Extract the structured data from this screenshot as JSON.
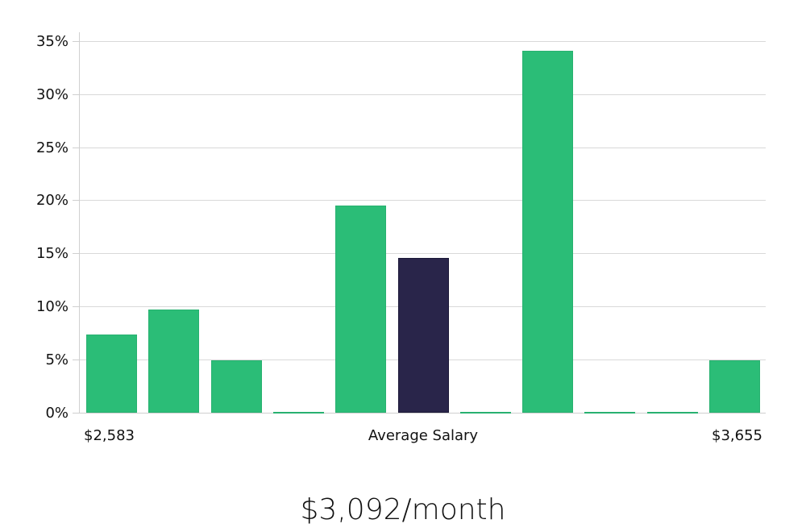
{
  "chart_data": {
    "type": "bar",
    "title": "",
    "xlabel": "Average Salary",
    "ylabel": "",
    "ylim": [
      0,
      35
    ],
    "y_ticks": [
      "0%",
      "5%",
      "10%",
      "15%",
      "20%",
      "25%",
      "30%",
      "35%"
    ],
    "x_range_labels": {
      "min": "$2,583",
      "max": "$3,655"
    },
    "grid": true,
    "legend": null,
    "categories": [
      "bin1",
      "bin2",
      "bin3",
      "bin4",
      "bin5",
      "bin6",
      "bin7",
      "bin8",
      "bin9",
      "bin10",
      "bin11"
    ],
    "values": [
      7.4,
      9.7,
      4.9,
      0.1,
      19.5,
      14.6,
      0.1,
      34.1,
      0.1,
      0.1,
      4.9
    ],
    "highlight_index": 5,
    "colors": {
      "bar": "#2bbd77",
      "highlight": "#29254a",
      "grid": "#d9d9d9"
    }
  },
  "axis": {
    "y_labels": [
      "35%",
      "30%",
      "25%",
      "20%",
      "15%",
      "10%",
      "5%",
      "0%"
    ],
    "x_min_label": "$2,583",
    "x_center_label": "Average Salary",
    "x_max_label": "$3,655"
  },
  "headline": {
    "salary": "$3,092/month"
  }
}
